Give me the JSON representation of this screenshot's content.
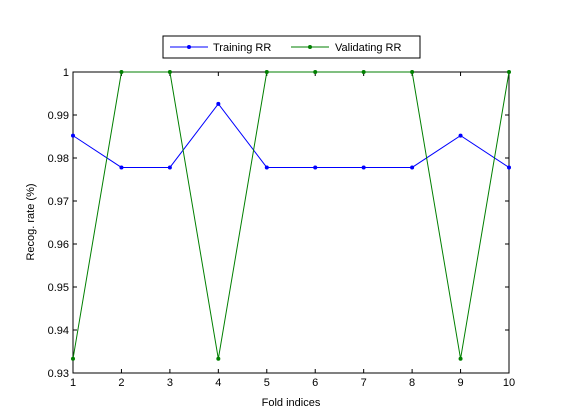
{
  "chart_data": {
    "type": "line",
    "title": "",
    "xlabel": "Fold indices",
    "ylabel": "Recog. rate (%)",
    "xlim": [
      1,
      10
    ],
    "ylim": [
      0.93,
      1
    ],
    "x_ticks": [
      "1",
      "2",
      "3",
      "4",
      "5",
      "6",
      "7",
      "8",
      "9",
      "10"
    ],
    "y_ticks": [
      "0.93",
      "0.94",
      "0.95",
      "0.96",
      "0.97",
      "0.98",
      "0.99",
      "1"
    ],
    "x_tick_values": [
      1,
      2,
      3,
      4,
      5,
      6,
      7,
      8,
      9,
      10
    ],
    "y_tick_values": [
      0.93,
      0.94,
      0.95,
      0.96,
      0.97,
      0.98,
      0.99,
      1
    ],
    "grid": false,
    "legend_position": "top-center",
    "x": [
      1,
      2,
      3,
      4,
      5,
      6,
      7,
      8,
      9,
      10
    ],
    "series": [
      {
        "name": "Training RR",
        "color": "#0000ff",
        "marker": "dot",
        "values": [
          0.9852,
          0.9778,
          0.9778,
          0.9926,
          0.9778,
          0.9778,
          0.9778,
          0.9778,
          0.9852,
          0.9778
        ]
      },
      {
        "name": "Validating RR",
        "color": "#007f00",
        "marker": "dot",
        "values": [
          0.9333,
          1,
          1,
          0.9333,
          1,
          1,
          1,
          1,
          0.9333,
          1
        ]
      }
    ]
  }
}
